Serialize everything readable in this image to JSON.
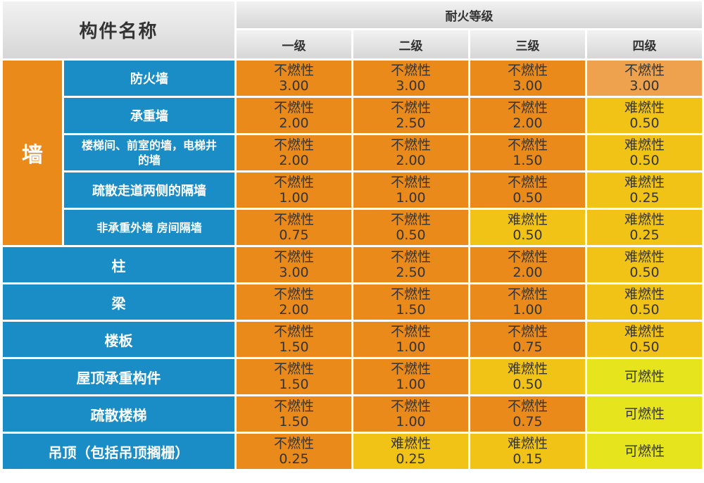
{
  "header": {
    "name_title": "构件名称",
    "rating_title": "耐火等级",
    "levels": [
      "一级",
      "二级",
      "三级",
      "四级"
    ]
  },
  "wall_group_label": "墙",
  "rows": [
    {
      "name": "防火墙",
      "cells": [
        {
          "material": "不燃性",
          "hours": "3.00",
          "color": "#e98a1a"
        },
        {
          "material": "不燃性",
          "hours": "3.00",
          "color": "#e98a1a"
        },
        {
          "material": "不燃性",
          "hours": "3.00",
          "color": "#e98a1a"
        },
        {
          "material": "不燃性",
          "hours": "3.00",
          "color": "#eea24e"
        }
      ]
    },
    {
      "name": "承重墙",
      "cells": [
        {
          "material": "不燃性",
          "hours": "2.00",
          "color": "#e98a1a"
        },
        {
          "material": "不燃性",
          "hours": "2.50",
          "color": "#e98a1a"
        },
        {
          "material": "不燃性",
          "hours": "2.00",
          "color": "#e98a1a"
        },
        {
          "material": "难燃性",
          "hours": "0.50",
          "color": "#f2c317"
        }
      ]
    },
    {
      "name": "楼梯间、前室的墙，电梯井的墙",
      "cells": [
        {
          "material": "不燃性",
          "hours": "2.00",
          "color": "#e98a1a"
        },
        {
          "material": "不燃性",
          "hours": "2.00",
          "color": "#e98a1a"
        },
        {
          "material": "不燃性",
          "hours": "1.50",
          "color": "#e98a1a"
        },
        {
          "material": "难燃性",
          "hours": "0.50",
          "color": "#f2c317"
        }
      ]
    },
    {
      "name": "疏散走道两侧的隔墙",
      "cells": [
        {
          "material": "不燃性",
          "hours": "1.00",
          "color": "#e98a1a"
        },
        {
          "material": "不燃性",
          "hours": "1.00",
          "color": "#e98a1a"
        },
        {
          "material": "不燃性",
          "hours": "0.50",
          "color": "#e98a1a"
        },
        {
          "material": "难燃性",
          "hours": "0.25",
          "color": "#f2c317"
        }
      ]
    },
    {
      "name": "非承重外墙 房间隔墙",
      "cells": [
        {
          "material": "不燃性",
          "hours": "0.75",
          "color": "#e98a1a"
        },
        {
          "material": "不燃性",
          "hours": "0.50",
          "color": "#e98a1a"
        },
        {
          "material": "难燃性",
          "hours": "0.50",
          "color": "#f2c317"
        },
        {
          "material": "难燃性",
          "hours": "0.25",
          "color": "#f2c317"
        }
      ]
    },
    {
      "name": "柱",
      "cells": [
        {
          "material": "不燃性",
          "hours": "3.00",
          "color": "#e98a1a"
        },
        {
          "material": "不燃性",
          "hours": "2.50",
          "color": "#e98a1a"
        },
        {
          "material": "不燃性",
          "hours": "2.00",
          "color": "#e98a1a"
        },
        {
          "material": "难燃性",
          "hours": "0.50",
          "color": "#f2c317"
        }
      ]
    },
    {
      "name": "梁",
      "cells": [
        {
          "material": "不燃性",
          "hours": "2.00",
          "color": "#e98a1a"
        },
        {
          "material": "不燃性",
          "hours": "1.50",
          "color": "#e98a1a"
        },
        {
          "material": "不燃性",
          "hours": "1.00",
          "color": "#e98a1a"
        },
        {
          "material": "难燃性",
          "hours": "0.50",
          "color": "#f2c317"
        }
      ]
    },
    {
      "name": "楼板",
      "cells": [
        {
          "material": "不燃性",
          "hours": "1.50",
          "color": "#e98a1a"
        },
        {
          "material": "不燃性",
          "hours": "1.00",
          "color": "#e98a1a"
        },
        {
          "material": "不燃性",
          "hours": "0.75",
          "color": "#e98a1a"
        },
        {
          "material": "难燃性",
          "hours": "0.50",
          "color": "#f2c317"
        }
      ]
    },
    {
      "name": "屋顶承重构件",
      "cells": [
        {
          "material": "不燃性",
          "hours": "1.50",
          "color": "#e98a1a"
        },
        {
          "material": "不燃性",
          "hours": "1.00",
          "color": "#e98a1a"
        },
        {
          "material": "难燃性",
          "hours": "0.50",
          "color": "#f2c317"
        },
        {
          "material": "可燃性",
          "hours": "",
          "color": "#e6e41c"
        }
      ]
    },
    {
      "name": "疏散楼梯",
      "cells": [
        {
          "material": "不燃性",
          "hours": "1.50",
          "color": "#e98a1a"
        },
        {
          "material": "不燃性",
          "hours": "1.00",
          "color": "#e98a1a"
        },
        {
          "material": "不燃性",
          "hours": "0.75",
          "color": "#e98a1a"
        },
        {
          "material": "可燃性",
          "hours": "",
          "color": "#e6e41c"
        }
      ]
    },
    {
      "name": "吊顶（包括吊顶搁栅）",
      "cells": [
        {
          "material": "不燃性",
          "hours": "0.25",
          "color": "#e98a1a"
        },
        {
          "material": "难燃性",
          "hours": "0.25",
          "color": "#f2c317"
        },
        {
          "material": "难燃性",
          "hours": "0.15",
          "color": "#f2c317"
        },
        {
          "material": "可燃性",
          "hours": "",
          "color": "#e6e41c"
        }
      ]
    }
  ]
}
